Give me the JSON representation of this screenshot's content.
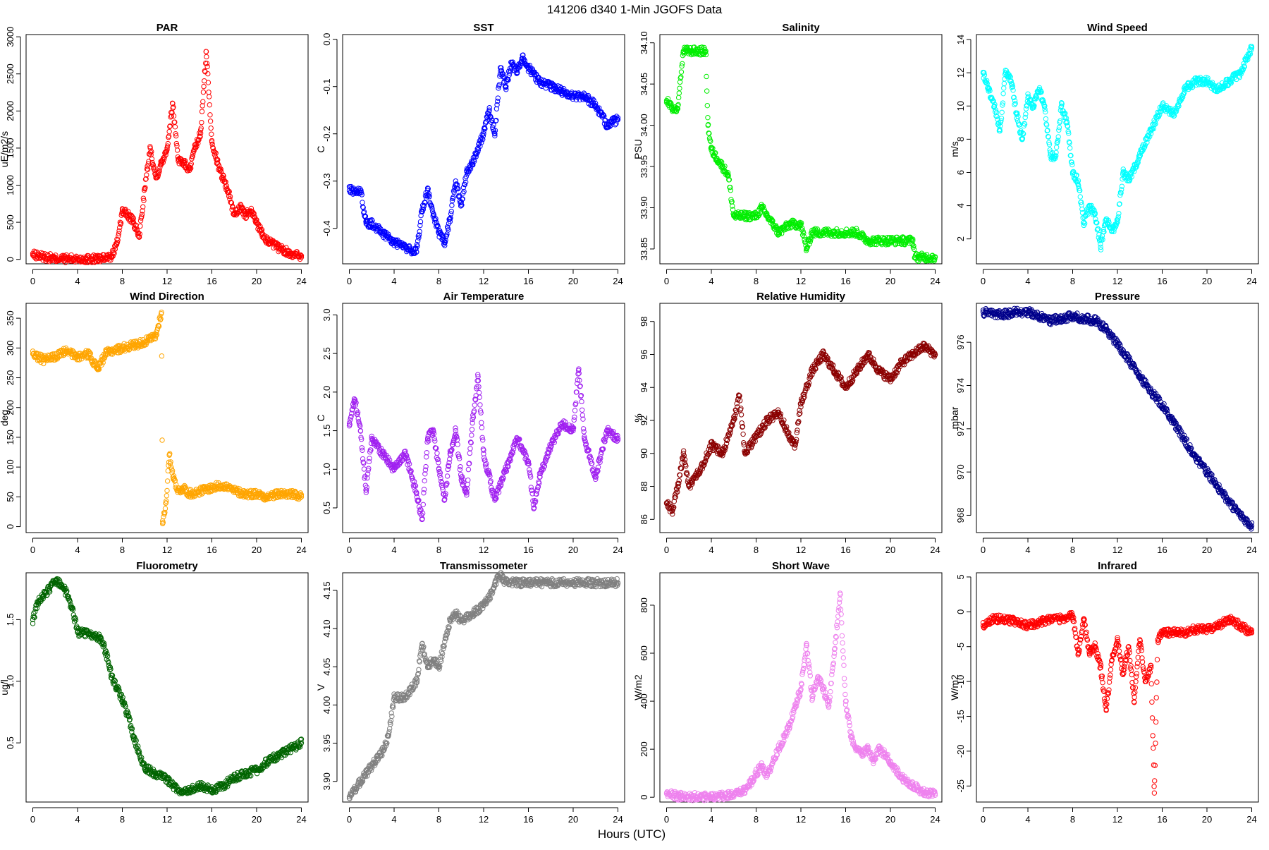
{
  "figure": {
    "title": "141206   d340   1-Min  JGOFS Data",
    "xlabel": "Hours (UTC)"
  },
  "chart_data": [
    {
      "type": "scatter",
      "title": "PAR",
      "ylabel": "uE/m2/s",
      "color": "#ff0000",
      "xlim": [
        -0.6,
        24.6
      ],
      "ylim": [
        -60,
        3030
      ],
      "xticks": [
        0,
        4,
        8,
        12,
        16,
        20,
        24
      ],
      "yticks": [
        0,
        500,
        1000,
        1500,
        2000,
        2500,
        3000
      ],
      "x": [
        0,
        2,
        4,
        6,
        7,
        7.5,
        8,
        8.5,
        9,
        9.5,
        10,
        10.5,
        11,
        11.5,
        12,
        12.5,
        13,
        13.5,
        14,
        14.5,
        15,
        15.5,
        16,
        16.5,
        17,
        17.5,
        18,
        18.5,
        19,
        19.5,
        20,
        20.5,
        21,
        22,
        23,
        24
      ],
      "y": [
        60,
        10,
        5,
        10,
        30,
        200,
        650,
        600,
        500,
        300,
        950,
        1500,
        1100,
        1300,
        1500,
        2100,
        1350,
        1300,
        1200,
        1500,
        1700,
        2800,
        1600,
        1300,
        1100,
        900,
        600,
        700,
        600,
        650,
        500,
        350,
        250,
        150,
        80,
        50
      ]
    },
    {
      "type": "scatter",
      "title": "SST",
      "ylabel": "C",
      "color": "#0000ff",
      "xlim": [
        -0.6,
        24.6
      ],
      "ylim": [
        -0.475,
        0.01
      ],
      "xticks": [
        0,
        4,
        8,
        12,
        16,
        20,
        24
      ],
      "yticks": [
        -0.4,
        -0.3,
        -0.2,
        -0.1,
        0.0
      ],
      "x": [
        0,
        1,
        1.5,
        2,
        3,
        4,
        5,
        6,
        6.5,
        7,
        7.5,
        8,
        8.5,
        9,
        9.5,
        10,
        10.5,
        11,
        11.5,
        12,
        12.5,
        13,
        13.5,
        14,
        14.5,
        15,
        15.5,
        16,
        17,
        18,
        19,
        20,
        21,
        22,
        23,
        24
      ],
      "y": [
        -0.32,
        -0.32,
        -0.39,
        -0.39,
        -0.41,
        -0.43,
        -0.44,
        -0.45,
        -0.36,
        -0.32,
        -0.37,
        -0.41,
        -0.43,
        -0.38,
        -0.3,
        -0.35,
        -0.28,
        -0.26,
        -0.23,
        -0.2,
        -0.15,
        -0.2,
        -0.06,
        -0.1,
        -0.05,
        -0.07,
        -0.04,
        -0.06,
        -0.09,
        -0.1,
        -0.11,
        -0.12,
        -0.12,
        -0.14,
        -0.18,
        -0.17
      ]
    },
    {
      "type": "scatter",
      "title": "Salinity",
      "ylabel": "PSU",
      "color": "#00ee00",
      "xlim": [
        -0.6,
        24.6
      ],
      "ylim": [
        33.832,
        34.11
      ],
      "xticks": [
        0,
        4,
        8,
        12,
        16,
        20,
        24
      ],
      "yticks": [
        33.85,
        33.9,
        33.95,
        34.0,
        34.05,
        34.1
      ],
      "x": [
        0,
        0.5,
        1,
        1.5,
        2,
        3,
        3.5,
        3.7,
        4,
        4.5,
        5,
        5.5,
        6,
        7,
        8,
        8.5,
        9,
        9.5,
        10,
        11,
        12,
        12.5,
        13,
        14,
        15,
        16,
        17,
        18,
        19,
        20,
        21,
        22,
        22.2,
        23,
        24
      ],
      "y": [
        34.03,
        34.02,
        34.02,
        34.09,
        34.09,
        34.09,
        34.09,
        34.0,
        33.97,
        33.96,
        33.95,
        33.94,
        33.89,
        33.89,
        33.89,
        33.9,
        33.89,
        33.88,
        33.87,
        33.88,
        33.88,
        33.85,
        33.87,
        33.87,
        33.87,
        33.87,
        33.87,
        33.86,
        33.86,
        33.86,
        33.86,
        33.86,
        33.84,
        33.84,
        33.84
      ]
    },
    {
      "type": "scatter",
      "title": "Wind Speed",
      "ylabel": "m/s",
      "color": "#00ffff",
      "xlim": [
        -0.6,
        24.6
      ],
      "ylim": [
        0.5,
        14.3
      ],
      "xticks": [
        0,
        4,
        8,
        12,
        16,
        20,
        24
      ],
      "yticks": [
        2,
        4,
        6,
        8,
        10,
        12,
        14
      ],
      "x": [
        0,
        0.5,
        1,
        1.5,
        2,
        2.5,
        3,
        3.5,
        4,
        4.5,
        5,
        5.5,
        6,
        6.5,
        7,
        7.5,
        8,
        8.5,
        9,
        9.5,
        10,
        10.5,
        11,
        11.5,
        12,
        12.5,
        13,
        14,
        15,
        16,
        17,
        18,
        19,
        20,
        21,
        22,
        23,
        24
      ],
      "y": [
        12,
        11,
        10,
        8.5,
        12,
        11.5,
        9.5,
        8,
        10.5,
        10,
        11,
        10,
        7,
        7,
        10,
        9,
        6,
        5.5,
        3,
        4,
        3.5,
        1.5,
        3.2,
        2.5,
        3,
        6,
        5.5,
        7,
        8.5,
        10,
        9.5,
        11,
        11.5,
        11.5,
        11,
        11.5,
        12,
        13.5
      ]
    },
    {
      "type": "scatter",
      "title": "Wind Direction",
      "ylabel": "deg",
      "color": "#ffa500",
      "xlim": [
        -0.6,
        24.6
      ],
      "ylim": [
        -10,
        375
      ],
      "xticks": [
        0,
        4,
        8,
        12,
        16,
        20,
        24
      ],
      "yticks": [
        0,
        50,
        100,
        150,
        200,
        250,
        300,
        350
      ],
      "x": [
        0,
        1,
        2,
        3,
        4,
        5,
        5.8,
        6.5,
        7,
        8,
        9,
        10,
        10.5,
        11,
        11.5,
        11.6,
        11.9,
        12.2,
        12.6,
        13,
        13.5,
        14,
        15,
        16,
        17,
        18,
        19,
        20,
        21,
        22,
        23,
        24
      ],
      "y": [
        290,
        280,
        285,
        295,
        285,
        290,
        265,
        290,
        295,
        300,
        305,
        310,
        315,
        320,
        360,
        5,
        40,
        120,
        80,
        60,
        65,
        55,
        60,
        65,
        70,
        60,
        55,
        55,
        50,
        55,
        55,
        50
      ]
    },
    {
      "type": "scatter",
      "title": "Air Temperature",
      "ylabel": "C",
      "color": "#a020f0",
      "xlim": [
        -0.6,
        24.6
      ],
      "ylim": [
        0.18,
        3.15
      ],
      "xticks": [
        0,
        4,
        8,
        12,
        16,
        20,
        24
      ],
      "yticks": [
        0.5,
        1.0,
        1.5,
        2.0,
        2.5,
        3.0
      ],
      "x": [
        0,
        0.5,
        1,
        1.5,
        2,
        3,
        4,
        5,
        6,
        6.5,
        7,
        7.5,
        8,
        8.5,
        9,
        9.5,
        10,
        10.5,
        11,
        11.5,
        12,
        13,
        14,
        15,
        16,
        16.5,
        17,
        18,
        19,
        20,
        20.5,
        21,
        22,
        23,
        24
      ],
      "y": [
        1.6,
        1.9,
        1.5,
        0.7,
        1.4,
        1.2,
        1.0,
        1.2,
        0.7,
        0.35,
        1.4,
        1.5,
        1.0,
        0.6,
        1.2,
        1.5,
        0.9,
        0.7,
        1.6,
        2.2,
        1.2,
        0.6,
        1.0,
        1.4,
        1.1,
        0.5,
        0.9,
        1.3,
        1.6,
        1.5,
        2.3,
        1.4,
        0.9,
        1.5,
        1.4
      ]
    },
    {
      "type": "scatter",
      "title": "Relative Humidity",
      "ylabel": "%",
      "color": "#8b0000",
      "xlim": [
        -0.6,
        24.6
      ],
      "ylim": [
        85.2,
        99.1
      ],
      "xticks": [
        0,
        4,
        8,
        12,
        16,
        20,
        24
      ],
      "yticks": [
        86,
        88,
        90,
        92,
        94,
        96,
        98
      ],
      "x": [
        0,
        0.5,
        1,
        1.5,
        2,
        3,
        4,
        5,
        6,
        6.5,
        7,
        8,
        9,
        10,
        11,
        11.5,
        12,
        13,
        14,
        15,
        16,
        17,
        18,
        19,
        20,
        21,
        22,
        23,
        24
      ],
      "y": [
        87,
        86.5,
        88,
        90,
        88,
        89,
        90.5,
        90,
        92,
        93.5,
        90,
        91,
        92,
        92.5,
        91,
        90.5,
        93,
        95,
        96,
        95,
        94,
        95,
        96,
        95,
        94.5,
        95.5,
        96,
        96.5,
        96
      ]
    },
    {
      "type": "scatter",
      "title": "Pressure",
      "ylabel": "mbar",
      "color": "#00008b",
      "xlim": [
        -0.6,
        24.6
      ],
      "ylim": [
        967.2,
        977.8
      ],
      "xticks": [
        0,
        4,
        8,
        12,
        16,
        20,
        24
      ],
      "yticks": [
        968,
        970,
        972,
        974,
        976
      ],
      "x": [
        0,
        1,
        2,
        3,
        4,
        5,
        6,
        7,
        8,
        9,
        10,
        11,
        12,
        13,
        14,
        15,
        16,
        17,
        18,
        19,
        20,
        21,
        22,
        23,
        24
      ],
      "y": [
        977.4,
        977.3,
        977.3,
        977.4,
        977.4,
        977.2,
        977.0,
        977.1,
        977.2,
        977.1,
        977.0,
        976.6,
        975.9,
        975.2,
        974.4,
        973.7,
        973.1,
        972.3,
        971.5,
        970.7,
        970.0,
        969.3,
        968.6,
        968.0,
        967.5
      ]
    },
    {
      "type": "scatter",
      "title": "Fluorometry",
      "ylabel": "ug/l",
      "color": "#006400",
      "xlim": [
        -0.6,
        24.6
      ],
      "ylim": [
        0.02,
        1.88
      ],
      "xticks": [
        0,
        4,
        8,
        12,
        16,
        20,
        24
      ],
      "yticks": [
        0.5,
        1.0,
        1.5
      ],
      "x": [
        0,
        0.5,
        1,
        1.5,
        2,
        2.5,
        3,
        3.5,
        4,
        5,
        6,
        6.5,
        7,
        7.5,
        8,
        8.5,
        9,
        10,
        11,
        12,
        13,
        14,
        15,
        16,
        17,
        18,
        19,
        20,
        21,
        22,
        23,
        24
      ],
      "y": [
        1.5,
        1.65,
        1.7,
        1.75,
        1.82,
        1.78,
        1.72,
        1.6,
        1.4,
        1.38,
        1.35,
        1.25,
        1.05,
        0.95,
        0.85,
        0.72,
        0.55,
        0.3,
        0.25,
        0.2,
        0.12,
        0.12,
        0.15,
        0.12,
        0.15,
        0.22,
        0.25,
        0.28,
        0.35,
        0.4,
        0.45,
        0.5
      ]
    },
    {
      "type": "scatter",
      "title": "Transmissometer",
      "ylabel": "V",
      "color": "#808080",
      "xlim": [
        -0.6,
        24.6
      ],
      "ylim": [
        3.873,
        4.173
      ],
      "xticks": [
        0,
        4,
        8,
        12,
        16,
        20,
        24
      ],
      "yticks": [
        3.9,
        3.95,
        4.0,
        4.05,
        4.1,
        4.15
      ],
      "x": [
        0,
        0.5,
        1,
        1.5,
        2,
        2.5,
        3,
        3.5,
        4,
        5,
        6,
        6.5,
        7,
        7.5,
        8,
        9,
        9.5,
        10,
        11,
        12,
        12.5,
        13,
        13.5,
        14,
        16,
        18,
        20,
        22,
        24
      ],
      "y": [
        3.88,
        3.89,
        3.9,
        3.91,
        3.92,
        3.93,
        3.94,
        3.96,
        4.01,
        4.01,
        4.03,
        4.08,
        4.05,
        4.06,
        4.05,
        4.11,
        4.12,
        4.11,
        4.12,
        4.13,
        4.14,
        4.16,
        4.17,
        4.16,
        4.16,
        4.16,
        4.16,
        4.16,
        4.16
      ]
    },
    {
      "type": "scatter",
      "title": "Short Wave",
      "ylabel": "W/m2",
      "color": "#ee82ee",
      "xlim": [
        -0.6,
        24.6
      ],
      "ylim": [
        -20,
        935
      ],
      "xticks": [
        0,
        4,
        8,
        12,
        16,
        20,
        24
      ],
      "yticks": [
        0,
        200,
        400,
        600,
        800
      ],
      "x": [
        0,
        1,
        2,
        3,
        4,
        5,
        6,
        7,
        7.5,
        8,
        8.5,
        9,
        9.5,
        10,
        10.5,
        11,
        11.5,
        12,
        12.5,
        13,
        13.5,
        14,
        14.5,
        15,
        15.5,
        16,
        16.5,
        17,
        17.5,
        18,
        18.5,
        19,
        19.5,
        20,
        21,
        22,
        23,
        24
      ],
      "y": [
        15,
        5,
        3,
        3,
        3,
        5,
        8,
        30,
        60,
        100,
        130,
        90,
        150,
        200,
        250,
        300,
        380,
        450,
        640,
        420,
        500,
        450,
        380,
        600,
        850,
        400,
        250,
        200,
        180,
        200,
        150,
        200,
        180,
        150,
        80,
        50,
        20,
        15
      ]
    },
    {
      "type": "scatter",
      "title": "Infrared",
      "ylabel": "W/m2",
      "color": "#ff0000",
      "xlim": [
        -0.6,
        24.6
      ],
      "ylim": [
        -27.3,
        5.6
      ],
      "xticks": [
        0,
        4,
        8,
        12,
        16,
        20,
        24
      ],
      "yticks": [
        -25,
        -20,
        -15,
        -10,
        -5,
        0,
        5
      ],
      "x": [
        0,
        1,
        2,
        3,
        4,
        5,
        6,
        7,
        8,
        8.5,
        9,
        9.5,
        10,
        10.5,
        11,
        11.5,
        12,
        12.5,
        13,
        13.5,
        14,
        14.5,
        15,
        15.3,
        15.6,
        16,
        17,
        18,
        19,
        20,
        21,
        22,
        23,
        24
      ],
      "y": [
        -2,
        -1,
        -1,
        -1.5,
        -2,
        -1.5,
        -1,
        -1,
        -0.5,
        -6,
        -1,
        -6,
        -5,
        -8,
        -14,
        -7,
        -4,
        -9,
        -5,
        -13,
        -4,
        -10,
        -8,
        -26,
        -4,
        -3,
        -3,
        -3,
        -2.5,
        -2.5,
        -2,
        -1,
        -2,
        -3
      ]
    }
  ]
}
